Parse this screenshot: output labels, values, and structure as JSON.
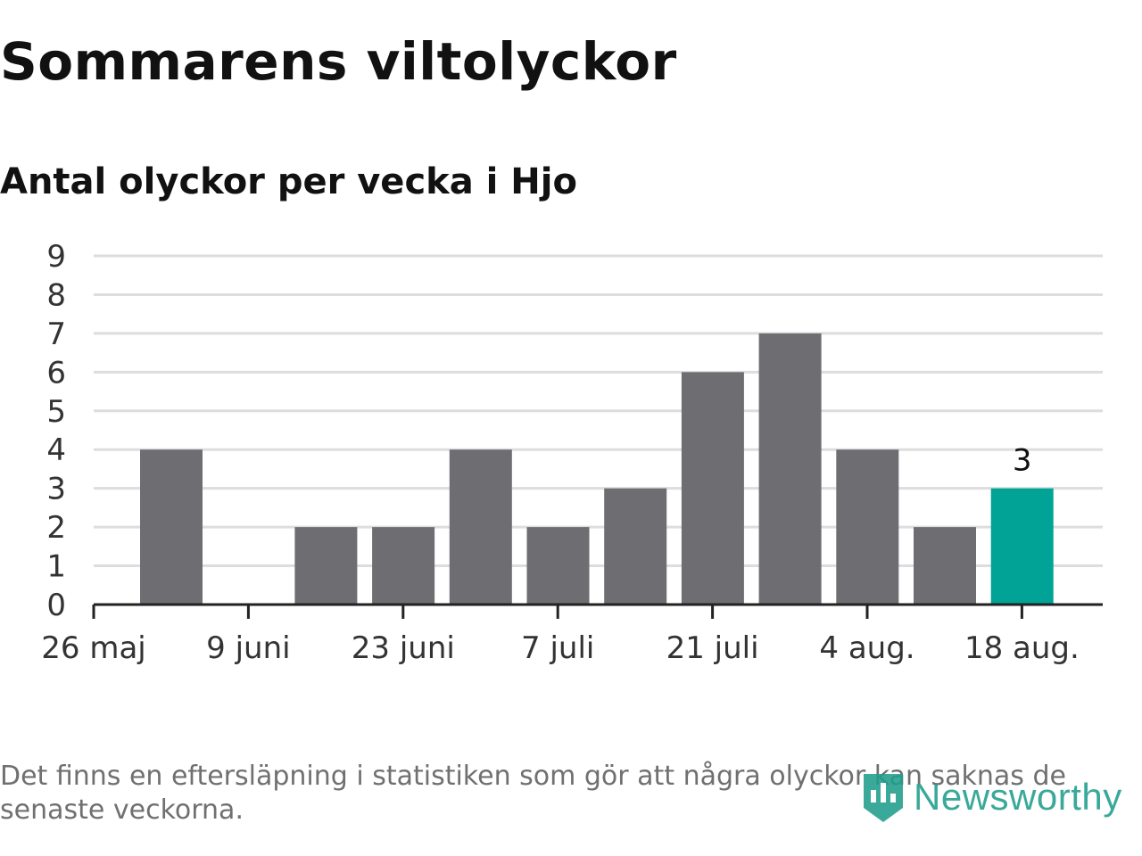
{
  "title": "Sommarens viltolyckor",
  "subtitle": "Antal olyckor per vecka i Hjo",
  "footnote": "Det finns en eftersläpning i statistiken som gör att några olyckor kan saknas de senaste veckorna.",
  "logo": {
    "text": "Newsworthy",
    "icon": "newsworthy-logo-icon",
    "color": "#1f9e8c"
  },
  "chart_data": {
    "type": "bar",
    "x_tick_labels": [
      "26 maj",
      "9 juni",
      "23 juni",
      "7 juli",
      "21 juli",
      "4 aug.",
      "18 aug."
    ],
    "values": [
      4,
      0,
      2,
      2,
      4,
      2,
      3,
      6,
      7,
      4,
      2,
      3
    ],
    "highlight_index": 11,
    "highlight_label": "3",
    "ylim": [
      0,
      9
    ],
    "yticks": [
      0,
      1,
      2,
      3,
      4,
      5,
      6,
      7,
      8,
      9
    ],
    "grid": true,
    "colors": {
      "bar": "#6e6d72",
      "highlight": "#00a396",
      "grid": "#dddddd",
      "axis": "#222222"
    }
  }
}
